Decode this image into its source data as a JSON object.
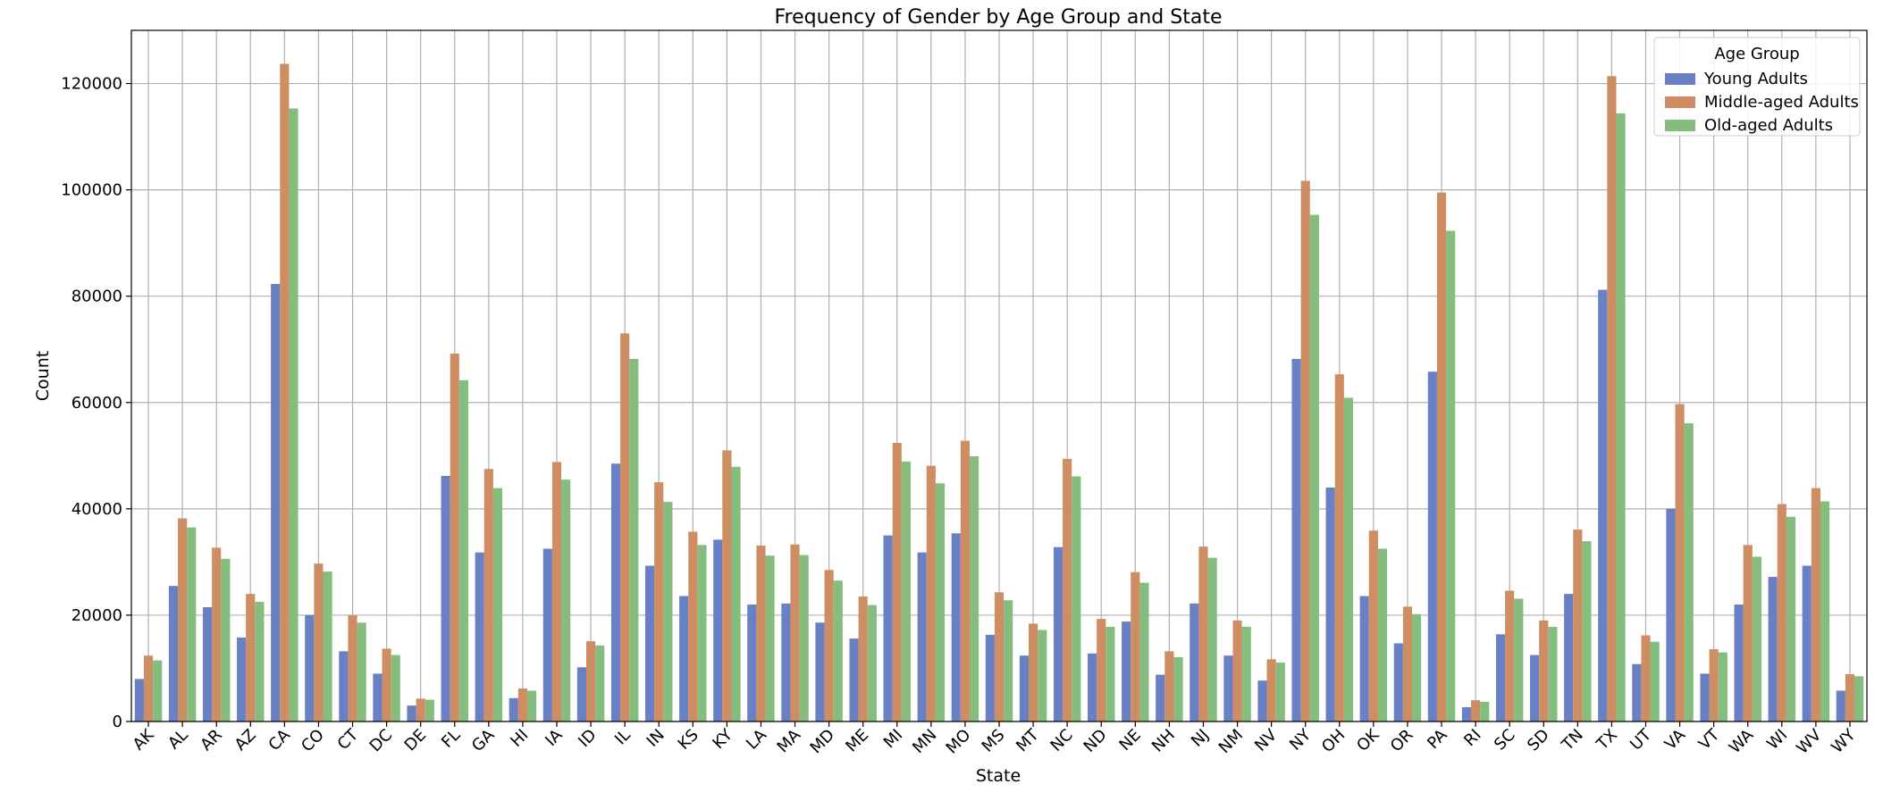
{
  "chart_data": {
    "type": "bar",
    "title": "Frequency of Gender by Age Group and State",
    "xlabel": "State",
    "ylabel": "Count",
    "ylim": [
      0,
      130000
    ],
    "yticks": [
      0,
      20000,
      40000,
      60000,
      80000,
      100000,
      120000
    ],
    "grid": true,
    "legend": {
      "title": "Age Group",
      "placement": "top-right"
    },
    "categories": [
      "AK",
      "AL",
      "AR",
      "AZ",
      "CA",
      "CO",
      "CT",
      "DC",
      "DE",
      "FL",
      "GA",
      "HI",
      "IA",
      "ID",
      "IL",
      "IN",
      "KS",
      "KY",
      "LA",
      "MA",
      "MD",
      "ME",
      "MI",
      "MN",
      "MO",
      "MS",
      "MT",
      "NC",
      "ND",
      "NE",
      "NH",
      "NJ",
      "NM",
      "NV",
      "NY",
      "OH",
      "OK",
      "OR",
      "PA",
      "RI",
      "SC",
      "SD",
      "TN",
      "TX",
      "UT",
      "VA",
      "VT",
      "WA",
      "WI",
      "WV",
      "WY"
    ],
    "series": [
      {
        "name": "Young Adults",
        "color": "#6a80c4",
        "values": [
          8000,
          25500,
          21500,
          15800,
          82300,
          20000,
          13200,
          9000,
          3000,
          46200,
          31800,
          4400,
          32500,
          10200,
          48500,
          29300,
          23600,
          34200,
          22000,
          22200,
          18600,
          15600,
          35000,
          31800,
          35400,
          16300,
          12400,
          32800,
          12800,
          18800,
          8800,
          22200,
          12400,
          7700,
          68200,
          44000,
          23600,
          14700,
          65800,
          2700,
          16400,
          12500,
          24000,
          81200,
          10800,
          40000,
          9000,
          22000,
          27200,
          29300,
          5800
        ]
      },
      {
        "name": "Middle-aged Adults",
        "color": "#ce8d62",
        "values": [
          12400,
          38200,
          32700,
          24000,
          123700,
          29700,
          20000,
          13700,
          4300,
          69200,
          47500,
          6200,
          48800,
          15100,
          73000,
          45000,
          35700,
          51000,
          33100,
          33300,
          28500,
          23500,
          52400,
          48100,
          52800,
          24300,
          18400,
          49400,
          19300,
          28100,
          13200,
          32900,
          19000,
          11700,
          101700,
          65300,
          35900,
          21600,
          99500,
          4000,
          24600,
          19000,
          36100,
          121400,
          16200,
          59700,
          13600,
          33200,
          40900,
          43900,
          8900
        ]
      },
      {
        "name": "Old-aged Adults",
        "color": "#84bd7d",
        "values": [
          11500,
          36500,
          30600,
          22500,
          115300,
          28200,
          18600,
          12500,
          4100,
          64200,
          43900,
          5800,
          45500,
          14300,
          68200,
          41300,
          33200,
          47900,
          31200,
          31300,
          26500,
          21900,
          48900,
          44800,
          49900,
          22800,
          17200,
          46100,
          17800,
          26100,
          12100,
          30800,
          17800,
          11100,
          95300,
          60900,
          32500,
          20200,
          92300,
          3700,
          23100,
          17800,
          33900,
          114400,
          15000,
          56100,
          13000,
          31000,
          38500,
          41400,
          8500
        ]
      }
    ]
  }
}
